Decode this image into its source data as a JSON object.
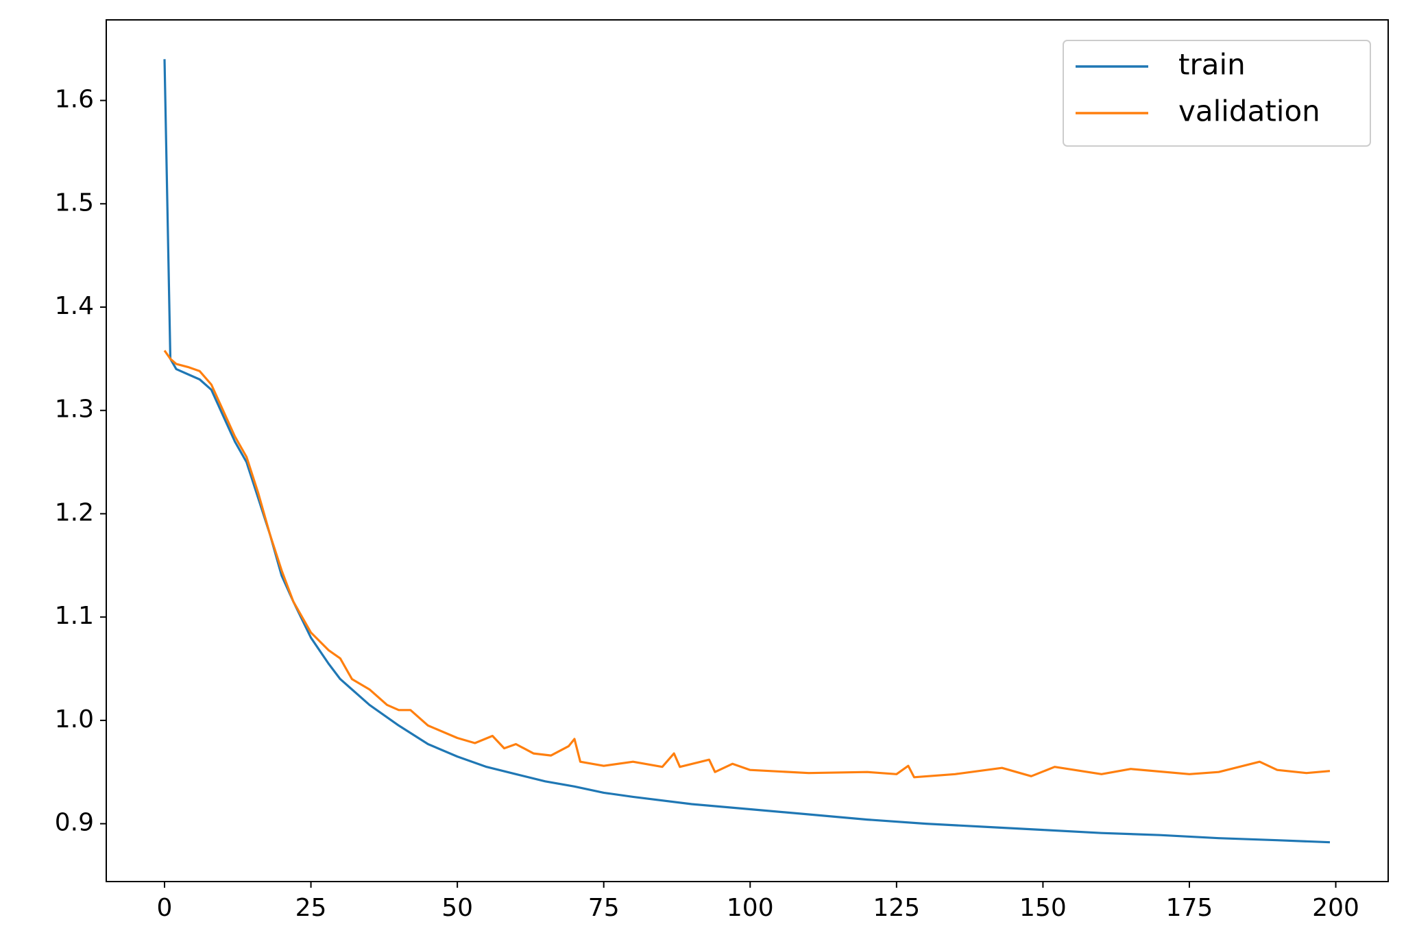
{
  "chart_data": {
    "type": "line",
    "series": [
      {
        "name": "train",
        "color": "#1f77b4",
        "x": [
          0,
          1,
          2,
          4,
          6,
          8,
          10,
          12,
          14,
          16,
          18,
          20,
          22,
          25,
          28,
          30,
          35,
          40,
          45,
          50,
          55,
          60,
          65,
          70,
          75,
          80,
          90,
          100,
          110,
          120,
          130,
          140,
          150,
          160,
          170,
          180,
          190,
          199
        ],
        "values": [
          1.64,
          1.35,
          1.34,
          1.335,
          1.33,
          1.32,
          1.295,
          1.27,
          1.25,
          1.215,
          1.18,
          1.14,
          1.115,
          1.08,
          1.055,
          1.04,
          1.015,
          0.995,
          0.977,
          0.965,
          0.955,
          0.948,
          0.941,
          0.936,
          0.93,
          0.926,
          0.919,
          0.914,
          0.909,
          0.904,
          0.9,
          0.897,
          0.894,
          0.891,
          0.889,
          0.886,
          0.884,
          0.882
        ]
      },
      {
        "name": "validation",
        "color": "#ff7f0e",
        "x": [
          0,
          1,
          2,
          4,
          6,
          8,
          10,
          12,
          14,
          16,
          18,
          20,
          22,
          25,
          28,
          30,
          32,
          35,
          38,
          40,
          42,
          45,
          50,
          53,
          56,
          58,
          60,
          63,
          66,
          69,
          70,
          71,
          75,
          80,
          85,
          87,
          88,
          93,
          94,
          97,
          100,
          110,
          120,
          125,
          127,
          128,
          135,
          143,
          148,
          152,
          160,
          165,
          175,
          180,
          187,
          190,
          195,
          199
        ],
        "values": [
          1.358,
          1.35,
          1.345,
          1.342,
          1.338,
          1.325,
          1.3,
          1.275,
          1.255,
          1.22,
          1.18,
          1.145,
          1.115,
          1.085,
          1.068,
          1.06,
          1.04,
          1.03,
          1.015,
          1.01,
          1.01,
          0.995,
          0.983,
          0.978,
          0.985,
          0.973,
          0.977,
          0.968,
          0.966,
          0.975,
          0.982,
          0.96,
          0.956,
          0.96,
          0.955,
          0.968,
          0.955,
          0.962,
          0.95,
          0.958,
          0.952,
          0.949,
          0.95,
          0.948,
          0.956,
          0.945,
          0.948,
          0.954,
          0.946,
          0.955,
          0.948,
          0.953,
          0.948,
          0.95,
          0.96,
          0.952,
          0.949,
          0.951
        ]
      }
    ],
    "xlim": [
      -9.95,
      208.95
    ],
    "xticks": [
      0,
      25,
      50,
      75,
      100,
      125,
      150,
      175,
      200
    ],
    "ylim": [
      0.844,
      1.678
    ],
    "yticks": [
      {
        "value": 0.9,
        "label": "0.9"
      },
      {
        "value": 1.0,
        "label": "1.0"
      },
      {
        "value": 1.1,
        "label": "1.1"
      },
      {
        "value": 1.2,
        "label": "1.2"
      },
      {
        "value": 1.3,
        "label": "1.3"
      },
      {
        "value": 1.4,
        "label": "1.4"
      },
      {
        "value": 1.5,
        "label": "1.5"
      },
      {
        "value": 1.6,
        "label": "1.6"
      }
    ],
    "grid": false,
    "legend": "upper-right"
  }
}
